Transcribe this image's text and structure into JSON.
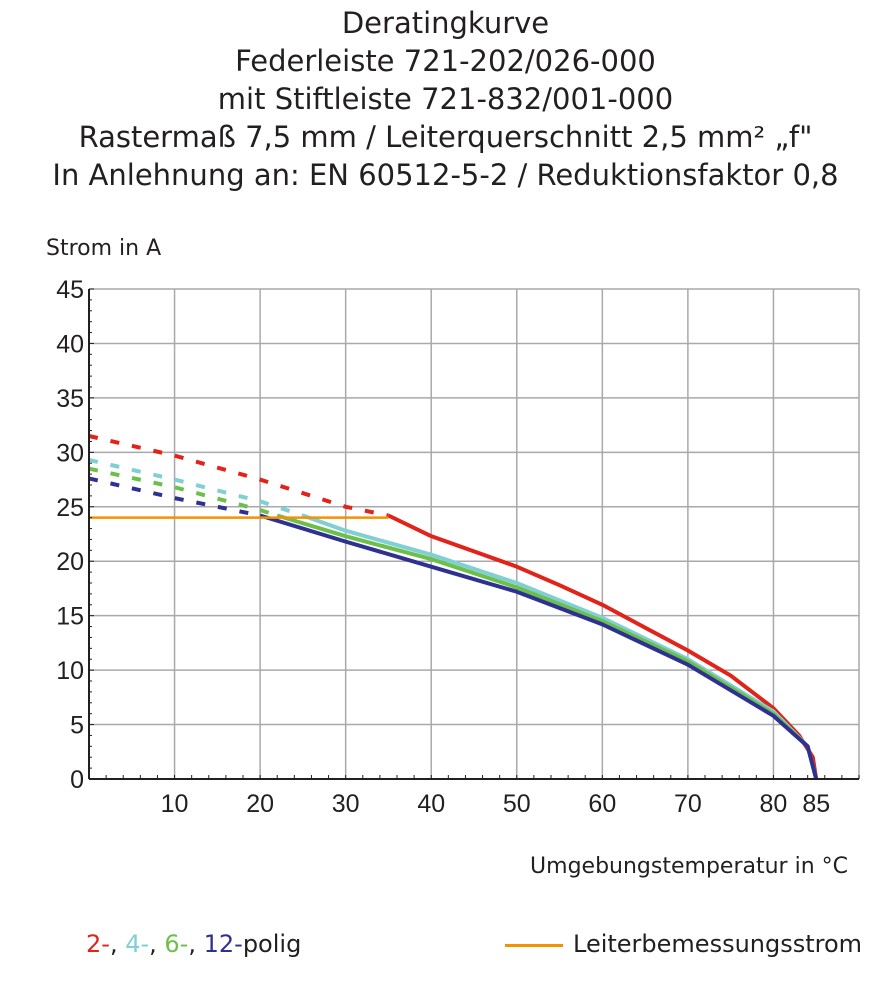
{
  "chart_data": {
    "type": "line",
    "title": [
      "Deratingkurve",
      "Federleiste 721-202/026-000",
      "mit Stiftleiste 721-832/001-000",
      "Rastermaß 7,5 mm / Leiterquerschnitt 2,5 mm² „f\"",
      "In Anlehnung an: EN 60512-5-2 / Reduktionsfaktor 0,8"
    ],
    "xlabel": "Umgebungstemperatur in °C",
    "ylabel": "Strom in A",
    "xlim": [
      0,
      90
    ],
    "ylim": [
      0,
      45
    ],
    "xticks": [
      "10",
      "20",
      "30",
      "40",
      "50",
      "60",
      "70",
      "80",
      "85"
    ],
    "xtick_values": [
      10,
      20,
      30,
      40,
      50,
      60,
      70,
      80,
      85
    ],
    "yticks": [
      "0",
      "5",
      "10",
      "15",
      "20",
      "25",
      "30",
      "35",
      "40",
      "45"
    ],
    "grid": true,
    "series": [
      {
        "name": "2-",
        "color": "#e2231a",
        "dashed": [
          [
            0,
            31.5
          ],
          [
            10,
            29.7
          ],
          [
            20,
            27.5
          ],
          [
            30,
            25
          ],
          [
            35,
            24.2
          ]
        ],
        "solid": [
          [
            35,
            24.2
          ],
          [
            40,
            22.3
          ],
          [
            50,
            19.5
          ],
          [
            55,
            17.8
          ],
          [
            60,
            16
          ],
          [
            70,
            11.8
          ],
          [
            75,
            9.5
          ],
          [
            80,
            6.5
          ],
          [
            83,
            4
          ],
          [
            84.6,
            2
          ],
          [
            85,
            0
          ]
        ]
      },
      {
        "name": "4-",
        "color": "#7fcfd4",
        "dashed": [
          [
            0,
            29.3
          ],
          [
            10,
            27.5
          ],
          [
            20,
            25.5
          ],
          [
            25,
            24.2
          ]
        ],
        "solid": [
          [
            25,
            24.2
          ],
          [
            30,
            22.8
          ],
          [
            40,
            20.6
          ],
          [
            50,
            18
          ],
          [
            60,
            14.8
          ],
          [
            70,
            11
          ],
          [
            80,
            6.2
          ],
          [
            84,
            3
          ],
          [
            85,
            0
          ]
        ]
      },
      {
        "name": "6-",
        "color": "#6cbf4a",
        "dashed": [
          [
            0,
            28.5
          ],
          [
            10,
            26.8
          ],
          [
            20,
            24.7
          ],
          [
            22,
            24.2
          ]
        ],
        "solid": [
          [
            22,
            24.2
          ],
          [
            30,
            22.3
          ],
          [
            40,
            20.2
          ],
          [
            50,
            17.6
          ],
          [
            60,
            14.5
          ],
          [
            70,
            10.8
          ],
          [
            80,
            6
          ],
          [
            84,
            3
          ],
          [
            85,
            0
          ]
        ]
      },
      {
        "name": "12-",
        "color": "#2e3192",
        "dashed": [
          [
            0,
            27.6
          ],
          [
            10,
            25.8
          ],
          [
            20,
            24.2
          ]
        ],
        "solid": [
          [
            20,
            24.2
          ],
          [
            30,
            21.8
          ],
          [
            40,
            19.5
          ],
          [
            50,
            17.2
          ],
          [
            60,
            14.2
          ],
          [
            70,
            10.5
          ],
          [
            80,
            5.8
          ],
          [
            84,
            3
          ],
          [
            85,
            0
          ]
        ]
      },
      {
        "name": "Leiterbemessungsstrom",
        "color": "#f39200",
        "solid": [
          [
            0,
            24
          ],
          [
            35,
            24
          ]
        ]
      }
    ],
    "legend": {
      "polig_suffix": "polig",
      "rated_label": "Leiterbemessungsstrom"
    }
  }
}
